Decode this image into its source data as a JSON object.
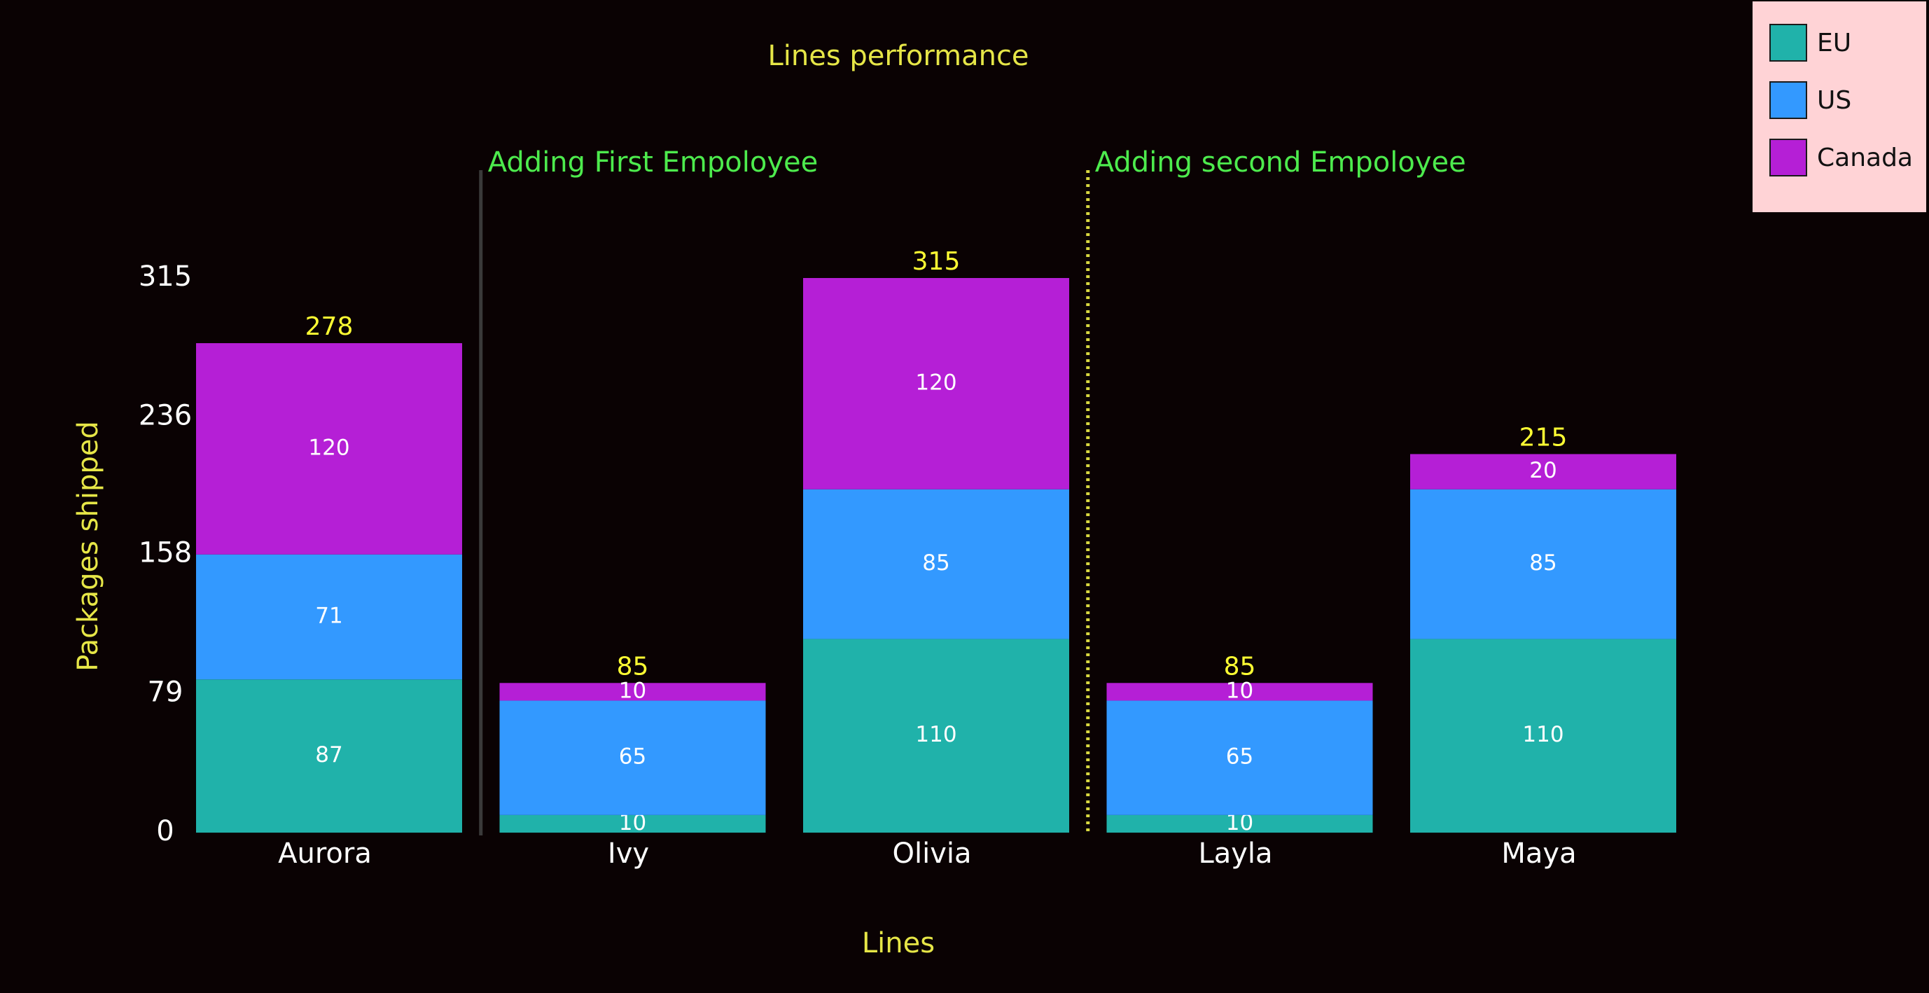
{
  "chart_data": {
    "type": "bar",
    "stacked": true,
    "title": "Lines performance",
    "xlabel": "Lines",
    "ylabel": "Packages shipped",
    "categories": [
      "Aurora",
      "Ivy",
      "Olivia",
      "Layla",
      "Maya"
    ],
    "series": [
      {
        "name": "EU",
        "values": [
          87,
          10,
          110,
          10,
          110
        ],
        "color": "#20b2aa"
      },
      {
        "name": "US",
        "values": [
          71,
          65,
          85,
          65,
          85
        ],
        "color": "#3399ff"
      },
      {
        "name": "Canada",
        "values": [
          120,
          10,
          120,
          10,
          20
        ],
        "color": "#b51fd6"
      }
    ],
    "totals": [
      278,
      85,
      315,
      85,
      215
    ],
    "yticks": [
      0,
      79,
      158,
      236,
      315
    ],
    "ylim": [
      0,
      315
    ],
    "grid": false,
    "legend_position": "top-right",
    "annotations": [
      {
        "text": "Adding First Empoloyee",
        "after_category": "Aurora",
        "line_style": "solid"
      },
      {
        "text": "Adding second Empoloyee",
        "after_category": "Olivia",
        "line_style": "dotted"
      }
    ],
    "colors": {
      "background": "#0a0203",
      "title": "#e6e647",
      "axis_label": "#e6e647",
      "total_label": "#ffff33",
      "annotation_text": "#4deb4d",
      "tick_label": "#ffffff",
      "segment_label": "#ffffff",
      "legend_background": "#ffd3d6"
    }
  }
}
